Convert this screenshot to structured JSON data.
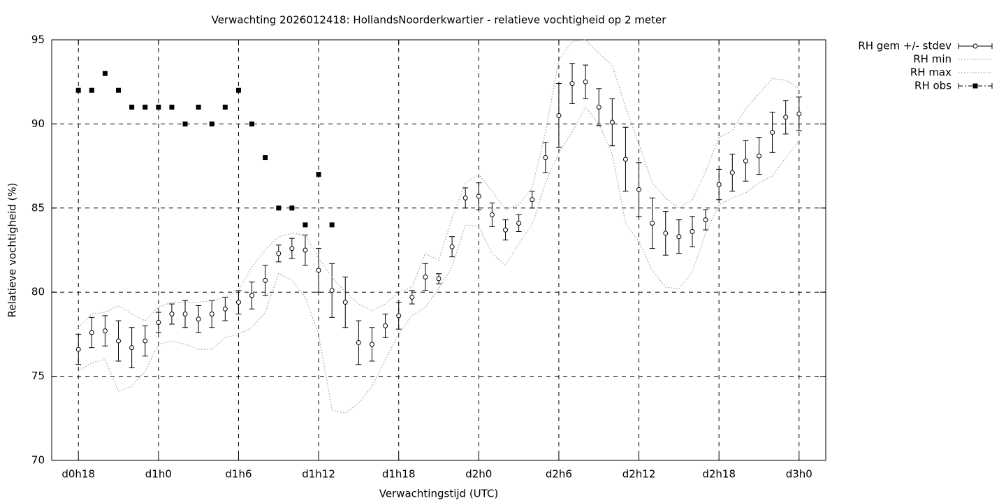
{
  "chart_data": {
    "type": "errorbar-line",
    "title": "Verwachting 2026012418: HollandsNoorderkwartier - relatieve vochtigheid op 2 meter",
    "x_label": "Verwachtingstijd (UTC)",
    "y_label": "Relatieve vochtigheid (%)",
    "x": [
      18,
      19,
      20,
      21,
      22,
      23,
      24,
      25,
      26,
      27,
      28,
      29,
      30,
      31,
      32,
      33,
      34,
      35,
      36,
      37,
      38,
      39,
      40,
      41,
      42,
      43,
      44,
      45,
      46,
      47,
      48,
      49,
      50,
      51,
      52,
      53,
      54,
      55,
      56,
      57,
      58,
      59,
      60,
      61,
      62,
      63,
      64,
      65,
      66,
      67,
      68,
      69,
      70,
      71,
      72
    ],
    "series": [
      {
        "name": "RH gem +/- stdev",
        "style": "errorbars",
        "color": "#000000",
        "values": [
          76.6,
          77.6,
          77.7,
          77.1,
          76.7,
          77.1,
          78.2,
          78.7,
          78.7,
          78.4,
          78.7,
          79.0,
          79.4,
          79.8,
          80.7,
          82.3,
          82.6,
          82.5,
          81.3,
          80.1,
          79.4,
          77.0,
          76.9,
          78.0,
          78.6,
          79.7,
          80.9,
          80.8,
          82.7,
          85.6,
          85.7,
          84.6,
          83.7,
          84.1,
          85.5,
          88.0,
          90.5,
          92.4,
          92.5,
          91.0,
          90.1,
          87.9,
          86.1,
          84.1,
          83.5,
          83.3,
          83.6,
          84.3,
          86.4,
          87.1,
          87.8,
          88.1,
          89.5,
          90.4,
          90.6
        ],
        "errors": [
          0.9,
          0.9,
          0.9,
          1.2,
          1.2,
          0.9,
          0.6,
          0.6,
          0.8,
          0.8,
          0.8,
          0.7,
          0.7,
          0.8,
          0.9,
          0.5,
          0.6,
          0.9,
          1.3,
          1.6,
          1.5,
          1.3,
          1.0,
          0.7,
          0.8,
          0.4,
          0.8,
          0.3,
          0.6,
          0.6,
          0.8,
          0.7,
          0.6,
          0.5,
          0.5,
          0.9,
          1.9,
          1.2,
          1.0,
          1.1,
          1.4,
          1.9,
          1.6,
          1.5,
          1.3,
          1.0,
          0.9,
          0.6,
          0.9,
          1.1,
          1.2,
          1.1,
          1.2,
          1.0,
          1.0
        ]
      },
      {
        "name": "RH min",
        "style": "dotted",
        "color": "#a0a0a0",
        "values": [
          75.3,
          75.8,
          76.0,
          74.1,
          74.4,
          75.3,
          76.9,
          77.1,
          76.9,
          76.6,
          76.6,
          77.3,
          77.5,
          77.9,
          78.8,
          81.1,
          80.7,
          79.7,
          77.5,
          73.0,
          72.8,
          73.4,
          74.4,
          76.0,
          77.5,
          78.6,
          79.1,
          80.2,
          81.5,
          84.0,
          83.9,
          82.3,
          81.6,
          82.9,
          84.0,
          86.5,
          88.3,
          89.5,
          91.0,
          90.0,
          88.2,
          84.1,
          83.0,
          81.3,
          80.3,
          80.2,
          81.2,
          83.5,
          85.2,
          85.6,
          85.9,
          86.5,
          86.9,
          88.0,
          89.0
        ]
      },
      {
        "name": "RH max",
        "style": "dotted",
        "color": "#a0a0a0",
        "values": [
          77.9,
          78.7,
          78.8,
          79.2,
          78.7,
          78.3,
          79.1,
          79.4,
          79.4,
          79.4,
          79.5,
          79.7,
          80.1,
          81.5,
          82.5,
          83.3,
          83.5,
          83.4,
          82.0,
          80.9,
          80.0,
          79.3,
          78.9,
          79.3,
          80.0,
          80.3,
          82.3,
          81.9,
          84.4,
          86.5,
          87.0,
          86.0,
          84.9,
          85.2,
          86.2,
          89.5,
          93.8,
          94.9,
          95.0,
          94.2,
          93.5,
          91.0,
          88.8,
          86.5,
          85.6,
          85.0,
          85.5,
          87.2,
          89.2,
          89.6,
          90.9,
          91.8,
          92.7,
          92.6,
          92.1
        ]
      },
      {
        "name": "RH obs",
        "style": "points",
        "color": "#000000",
        "values": [
          92,
          92,
          93,
          92,
          91,
          91,
          91,
          91,
          90,
          91,
          90,
          91,
          92,
          90,
          88,
          85,
          85,
          84,
          87,
          84,
          null,
          null,
          null,
          null,
          null,
          null,
          null,
          null,
          null,
          null,
          null,
          null,
          null,
          null,
          null,
          null,
          null,
          null,
          null,
          null,
          null,
          null,
          null,
          null,
          null,
          null,
          null,
          null,
          null,
          null,
          null,
          null,
          null,
          null,
          null
        ]
      }
    ],
    "xlim": [
      16,
      74
    ],
    "xticks": [
      {
        "value": 18,
        "label": "d0h18"
      },
      {
        "value": 24,
        "label": "d1h0"
      },
      {
        "value": 30,
        "label": "d1h6"
      },
      {
        "value": 36,
        "label": "d1h12"
      },
      {
        "value": 42,
        "label": "d1h18"
      },
      {
        "value": 48,
        "label": "d2h0"
      },
      {
        "value": 54,
        "label": "d2h6"
      },
      {
        "value": 60,
        "label": "d2h12"
      },
      {
        "value": 66,
        "label": "d2h18"
      },
      {
        "value": 72,
        "label": "d3h0"
      }
    ],
    "ylim": [
      70,
      95
    ],
    "yticks": [
      70,
      75,
      80,
      85,
      90,
      95
    ],
    "grid": true,
    "legend": "outside-top-right"
  }
}
